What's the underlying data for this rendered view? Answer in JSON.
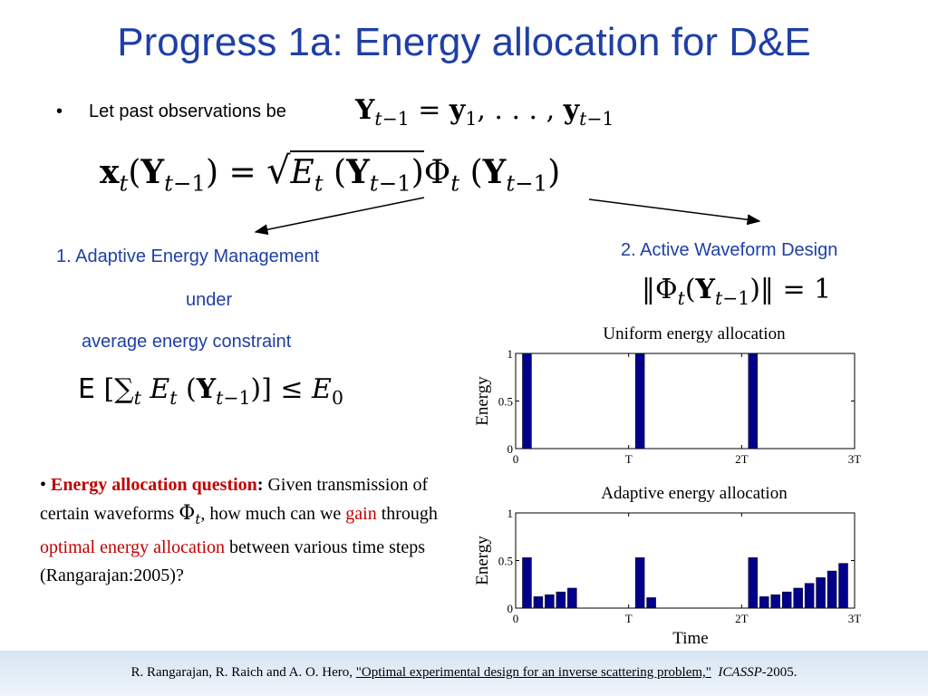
{
  "title": "Progress 1a: Energy allocation for D&E",
  "bullet1": {
    "bullet": "•",
    "text": "Let past observations be"
  },
  "sections": {
    "s1_line1": "1. Adaptive Energy Management",
    "s1_line2": "under",
    "s1_line3": "average energy constraint",
    "s2": "2. Active Waveform Design"
  },
  "question": {
    "bullet": "•",
    "label": "Energy allocation question",
    "colon": ":",
    "t1": " Given transmission of certain waveforms ",
    "t2": ", how much can we ",
    "gain": "gain",
    "t3": " through ",
    "optimal": "optimal energy allocation",
    "t4": " between various time steps (Rangarajan:2005)?"
  },
  "footer": {
    "authors": "R. Rangarajan, R. Raich and A. O. Hero, ",
    "paper": "\"Optimal experimental design for an inverse scattering problem,\"",
    "venue": "ICASSP",
    "year": "-2005."
  },
  "colors": {
    "title": "#1f3fa6",
    "highlight": "#c00000",
    "bar": "#00008b"
  },
  "chart_data": [
    {
      "type": "bar",
      "title": "Uniform energy allocation",
      "xlabel": "",
      "ylabel": "Energy",
      "ylim": [
        0,
        1
      ],
      "xlim": [
        0,
        3
      ],
      "xticks": [
        "0",
        "T",
        "2T",
        "3T"
      ],
      "yticks": [
        "0",
        "0.5",
        "1"
      ],
      "x": [
        0.1,
        1.1,
        2.1
      ],
      "values": [
        1,
        1,
        1
      ]
    },
    {
      "type": "bar",
      "title": "Adaptive energy allocation",
      "xlabel": "Time",
      "ylabel": "Energy",
      "ylim": [
        0,
        1
      ],
      "xlim": [
        0,
        3
      ],
      "xticks": [
        "0",
        "T",
        "2T",
        "3T"
      ],
      "yticks": [
        "0",
        "0.5",
        "1"
      ],
      "x": [
        0.1,
        0.2,
        0.3,
        0.4,
        0.5,
        1.1,
        1.2,
        2.1,
        2.2,
        2.3,
        2.4,
        2.5,
        2.6,
        2.7,
        2.8,
        2.9
      ],
      "values": [
        0.53,
        0.12,
        0.14,
        0.17,
        0.21,
        0.53,
        0.11,
        0.53,
        0.12,
        0.14,
        0.17,
        0.21,
        0.26,
        0.32,
        0.39,
        0.47
      ]
    }
  ]
}
